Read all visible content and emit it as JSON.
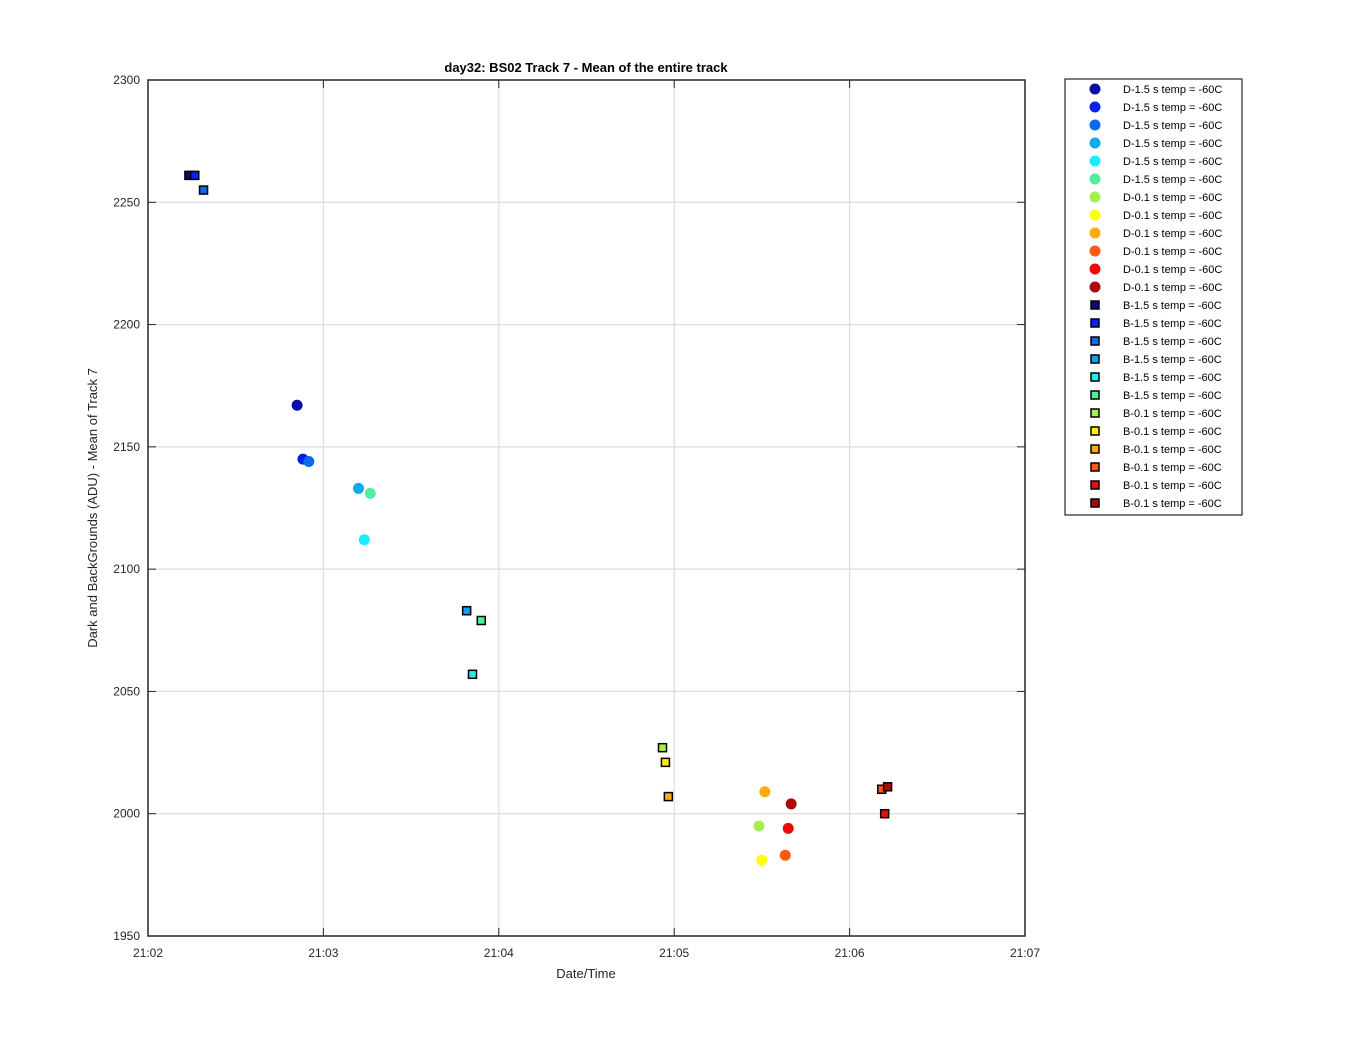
{
  "chart_data": {
    "type": "scatter",
    "title": "day32: BS02  Track 7 - Mean of the entire track",
    "xlabel": "Date/Time",
    "ylabel": "Dark and BackGrounds (ADU) - Mean of Track 7",
    "xlim": [
      "21:02",
      "21:07"
    ],
    "ylim": [
      1950,
      2300
    ],
    "x_ticks": [
      "21:02",
      "21:03",
      "21:04",
      "21:05",
      "21:06",
      "21:07"
    ],
    "y_ticks": [
      1950,
      2000,
      2050,
      2100,
      2150,
      2200,
      2250,
      2300
    ],
    "grid": true,
    "legend_position": "outside-right",
    "series": [
      {
        "name": "D-1.5 s temp = -60C",
        "marker": "circle",
        "color": "#0a0aa8",
        "points": [
          {
            "x": "21:02:51",
            "y": 2167
          }
        ]
      },
      {
        "name": "D-1.5 s temp = -60C",
        "marker": "circle",
        "color": "#0022ee",
        "points": [
          {
            "x": "21:02:53",
            "y": 2145
          }
        ]
      },
      {
        "name": "D-1.5 s temp = -60C",
        "marker": "circle",
        "color": "#0a6af0",
        "points": [
          {
            "x": "21:02:55",
            "y": 2144
          }
        ]
      },
      {
        "name": "D-1.5 s temp = -60C",
        "marker": "circle",
        "color": "#0aaaee",
        "points": [
          {
            "x": "21:03:12",
            "y": 2133
          }
        ]
      },
      {
        "name": "D-1.5 s temp = -60C",
        "marker": "circle",
        "color": "#16eeff",
        "points": [
          {
            "x": "21:03:14",
            "y": 2112
          }
        ]
      },
      {
        "name": "D-1.5 s temp = -60C",
        "marker": "circle",
        "color": "#50eea0",
        "points": [
          {
            "x": "21:03:16",
            "y": 2131
          }
        ]
      },
      {
        "name": "D-0.1 s temp = -60C",
        "marker": "circle",
        "color": "#a4ee50",
        "points": [
          {
            "x": "21:05:29",
            "y": 1995
          }
        ]
      },
      {
        "name": "D-0.1 s temp = -60C",
        "marker": "circle",
        "color": "#ffff10",
        "points": [
          {
            "x": "21:05:30",
            "y": 1981
          }
        ]
      },
      {
        "name": "D-0.1 s temp = -60C",
        "marker": "circle",
        "color": "#ffaa10",
        "points": [
          {
            "x": "21:05:31",
            "y": 2009
          }
        ]
      },
      {
        "name": "D-0.1 s temp = -60C",
        "marker": "circle",
        "color": "#ff5a10",
        "points": [
          {
            "x": "21:05:38",
            "y": 1983
          }
        ]
      },
      {
        "name": "D-0.1 s temp = -60C",
        "marker": "circle",
        "color": "#ee0a0a",
        "points": [
          {
            "x": "21:05:39",
            "y": 1994
          }
        ]
      },
      {
        "name": "D-0.1 s temp = -60C",
        "marker": "circle",
        "color": "#aa0a0a",
        "points": [
          {
            "x": "21:05:40",
            "y": 2004
          }
        ]
      },
      {
        "name": "B-1.5 s temp = -60C",
        "marker": "square",
        "color": "#0a0a80",
        "points": [
          {
            "x": "21:02:14",
            "y": 2261
          }
        ]
      },
      {
        "name": "B-1.5 s temp = -60C",
        "marker": "square",
        "color": "#0a22ee",
        "points": [
          {
            "x": "21:02:16",
            "y": 2261
          }
        ]
      },
      {
        "name": "B-1.5 s temp = -60C",
        "marker": "square",
        "color": "#0a6af0",
        "points": [
          {
            "x": "21:02:19",
            "y": 2255
          }
        ]
      },
      {
        "name": "B-1.5 s temp = -60C",
        "marker": "square",
        "color": "#10a2ee",
        "points": [
          {
            "x": "21:03:49",
            "y": 2083
          }
        ]
      },
      {
        "name": "B-1.5 s temp = -60C",
        "marker": "square",
        "color": "#20eeee",
        "points": [
          {
            "x": "21:03:51",
            "y": 2057
          }
        ]
      },
      {
        "name": "B-1.5 s temp = -60C",
        "marker": "square",
        "color": "#50ee9a",
        "points": [
          {
            "x": "21:03:54",
            "y": 2079
          }
        ]
      },
      {
        "name": "B-0.1 s temp = -60C",
        "marker": "square",
        "color": "#a4ee50",
        "points": [
          {
            "x": "21:04:56",
            "y": 2027
          }
        ]
      },
      {
        "name": "B-0.1 s temp = -60C",
        "marker": "square",
        "color": "#ffee10",
        "points": [
          {
            "x": "21:04:57",
            "y": 2021
          }
        ]
      },
      {
        "name": "B-0.1 s temp = -60C",
        "marker": "square",
        "color": "#ffaa10",
        "points": [
          {
            "x": "21:04:58",
            "y": 2007
          }
        ]
      },
      {
        "name": "B-0.1 s temp = -60C",
        "marker": "square",
        "color": "#ff5a10",
        "points": [
          {
            "x": "21:06:11",
            "y": 2010
          }
        ]
      },
      {
        "name": "B-0.1 s temp = -60C",
        "marker": "square",
        "color": "#ee0a0a",
        "points": [
          {
            "x": "21:06:12",
            "y": 2000
          }
        ]
      },
      {
        "name": "B-0.1 s temp = -60C",
        "marker": "square",
        "color": "#aa0a0a",
        "points": [
          {
            "x": "21:06:13",
            "y": 2011
          }
        ]
      }
    ]
  }
}
